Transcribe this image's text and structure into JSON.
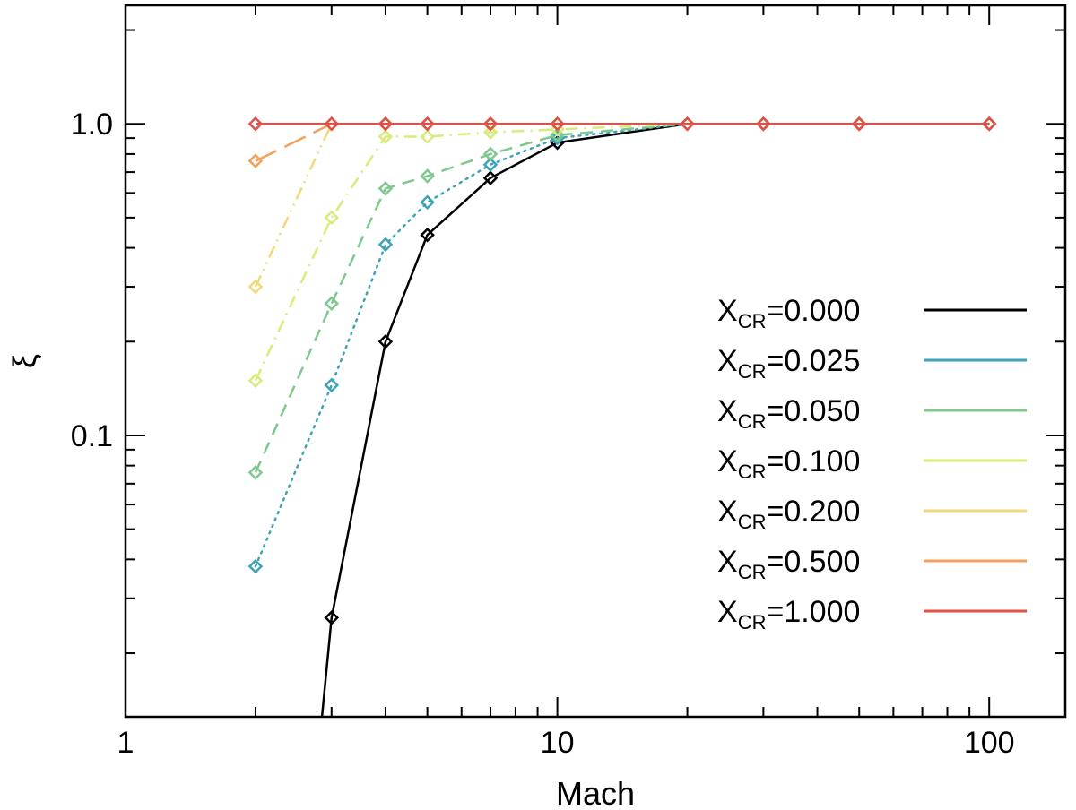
{
  "chart_data": {
    "type": "line",
    "title": "",
    "xlabel": "Mach",
    "ylabel": "ξ",
    "xscale": "log",
    "yscale": "log",
    "xlim": [
      1,
      150
    ],
    "ylim": [
      0.0125,
      2.4
    ],
    "x_ticks": [
      {
        "value": 1,
        "label": "1"
      },
      {
        "value": 10,
        "label": "10"
      },
      {
        "value": 100,
        "label": "100"
      }
    ],
    "y_ticks": [
      {
        "value": 0.1,
        "label": "0.1"
      },
      {
        "value": 1,
        "label": "1.0"
      }
    ],
    "legend_position": "right-center",
    "series": [
      {
        "name": "0.000",
        "color": "#000000",
        "dash": "solid",
        "points": [
          [
            2.85,
            0.0125
          ],
          [
            3,
            0.026
          ],
          [
            4,
            0.2
          ],
          [
            5,
            0.44
          ],
          [
            7,
            0.67
          ],
          [
            10,
            0.87
          ],
          [
            20,
            1.0
          ],
          [
            30,
            1.0
          ],
          [
            50,
            1.0
          ],
          [
            100,
            1.0
          ]
        ],
        "markers": [
          [
            3,
            0.026
          ],
          [
            4,
            0.2
          ],
          [
            5,
            0.44
          ],
          [
            7,
            0.67
          ],
          [
            10,
            0.87
          ],
          [
            20,
            1.0
          ],
          [
            30,
            1.0
          ],
          [
            50,
            1.0
          ],
          [
            100,
            1.0
          ]
        ]
      },
      {
        "name": "0.025",
        "color": "#3fa3b8",
        "dash": "dot",
        "points": [
          [
            2,
            0.038
          ],
          [
            3,
            0.145
          ],
          [
            4,
            0.41
          ],
          [
            5,
            0.56
          ],
          [
            7,
            0.74
          ],
          [
            10,
            0.9
          ],
          [
            20,
            1.0
          ],
          [
            30,
            1.0
          ],
          [
            50,
            1.0
          ],
          [
            100,
            1.0
          ]
        ],
        "markers": [
          [
            2,
            0.038
          ],
          [
            3,
            0.145
          ],
          [
            4,
            0.41
          ],
          [
            5,
            0.56
          ],
          [
            7,
            0.74
          ],
          [
            10,
            0.9
          ],
          [
            20,
            1.0
          ],
          [
            30,
            1.0
          ],
          [
            50,
            1.0
          ],
          [
            100,
            1.0
          ]
        ]
      },
      {
        "name": "0.050",
        "color": "#7ec88e",
        "dash": "dash",
        "points": [
          [
            2,
            0.076
          ],
          [
            3,
            0.265
          ],
          [
            4,
            0.62
          ],
          [
            5,
            0.68
          ],
          [
            7,
            0.8
          ],
          [
            10,
            0.92
          ],
          [
            20,
            1.0
          ],
          [
            30,
            1.0
          ],
          [
            50,
            1.0
          ],
          [
            100,
            1.0
          ]
        ],
        "markers": [
          [
            2,
            0.076
          ],
          [
            3,
            0.265
          ],
          [
            4,
            0.62
          ],
          [
            5,
            0.68
          ],
          [
            7,
            0.8
          ],
          [
            10,
            0.92
          ],
          [
            20,
            1.0
          ],
          [
            30,
            1.0
          ],
          [
            50,
            1.0
          ],
          [
            100,
            1.0
          ]
        ]
      },
      {
        "name": "0.100",
        "color": "#d8ec7a",
        "dash": "dashdot",
        "points": [
          [
            2,
            0.15
          ],
          [
            3,
            0.5
          ],
          [
            4,
            0.91
          ],
          [
            5,
            0.91
          ],
          [
            7,
            0.94
          ],
          [
            10,
            0.96
          ],
          [
            20,
            1.0
          ],
          [
            30,
            1.0
          ],
          [
            50,
            1.0
          ],
          [
            100,
            1.0
          ]
        ],
        "markers": [
          [
            2,
            0.15
          ],
          [
            3,
            0.5
          ],
          [
            4,
            0.91
          ],
          [
            5,
            0.91
          ],
          [
            7,
            0.94
          ],
          [
            10,
            0.96
          ],
          [
            20,
            1.0
          ],
          [
            30,
            1.0
          ],
          [
            50,
            1.0
          ],
          [
            100,
            1.0
          ]
        ]
      },
      {
        "name": "0.200",
        "color": "#f2d87a",
        "dash": "dashdotdot",
        "points": [
          [
            2,
            0.3
          ],
          [
            3,
            1.0
          ],
          [
            4,
            1.0
          ],
          [
            5,
            1.0
          ],
          [
            7,
            1.0
          ],
          [
            10,
            1.0
          ],
          [
            20,
            1.0
          ],
          [
            30,
            1.0
          ],
          [
            50,
            1.0
          ],
          [
            100,
            1.0
          ]
        ],
        "markers": [
          [
            2,
            0.3
          ],
          [
            3,
            1.0
          ],
          [
            4,
            1.0
          ],
          [
            5,
            1.0
          ],
          [
            7,
            1.0
          ],
          [
            10,
            1.0
          ],
          [
            20,
            1.0
          ],
          [
            30,
            1.0
          ],
          [
            50,
            1.0
          ],
          [
            100,
            1.0
          ]
        ]
      },
      {
        "name": "0.500",
        "color": "#f2a05a",
        "dash": "longdash",
        "points": [
          [
            2,
            0.76
          ],
          [
            3,
            1.0
          ],
          [
            4,
            1.0
          ],
          [
            5,
            1.0
          ],
          [
            7,
            1.0
          ],
          [
            10,
            1.0
          ],
          [
            20,
            1.0
          ],
          [
            30,
            1.0
          ],
          [
            50,
            1.0
          ],
          [
            100,
            1.0
          ]
        ],
        "markers": [
          [
            2,
            0.76
          ],
          [
            3,
            1.0
          ],
          [
            4,
            1.0
          ],
          [
            5,
            1.0
          ],
          [
            7,
            1.0
          ],
          [
            10,
            1.0
          ],
          [
            20,
            1.0
          ],
          [
            30,
            1.0
          ],
          [
            50,
            1.0
          ],
          [
            100,
            1.0
          ]
        ]
      },
      {
        "name": "1.000",
        "color": "#e0504a",
        "dash": "solid",
        "points": [
          [
            2,
            1.0
          ],
          [
            3,
            1.0
          ],
          [
            4,
            1.0
          ],
          [
            5,
            1.0
          ],
          [
            7,
            1.0
          ],
          [
            10,
            1.0
          ],
          [
            20,
            1.0
          ],
          [
            30,
            1.0
          ],
          [
            50,
            1.0
          ],
          [
            100,
            1.0
          ]
        ],
        "markers": [
          [
            2,
            1.0
          ],
          [
            3,
            1.0
          ],
          [
            4,
            1.0
          ],
          [
            5,
            1.0
          ],
          [
            7,
            1.0
          ],
          [
            10,
            1.0
          ],
          [
            20,
            1.0
          ],
          [
            30,
            1.0
          ],
          [
            50,
            1.0
          ],
          [
            100,
            1.0
          ]
        ]
      }
    ],
    "legend": {
      "prefix": "X",
      "subscript": "CR",
      "separator": "="
    }
  }
}
